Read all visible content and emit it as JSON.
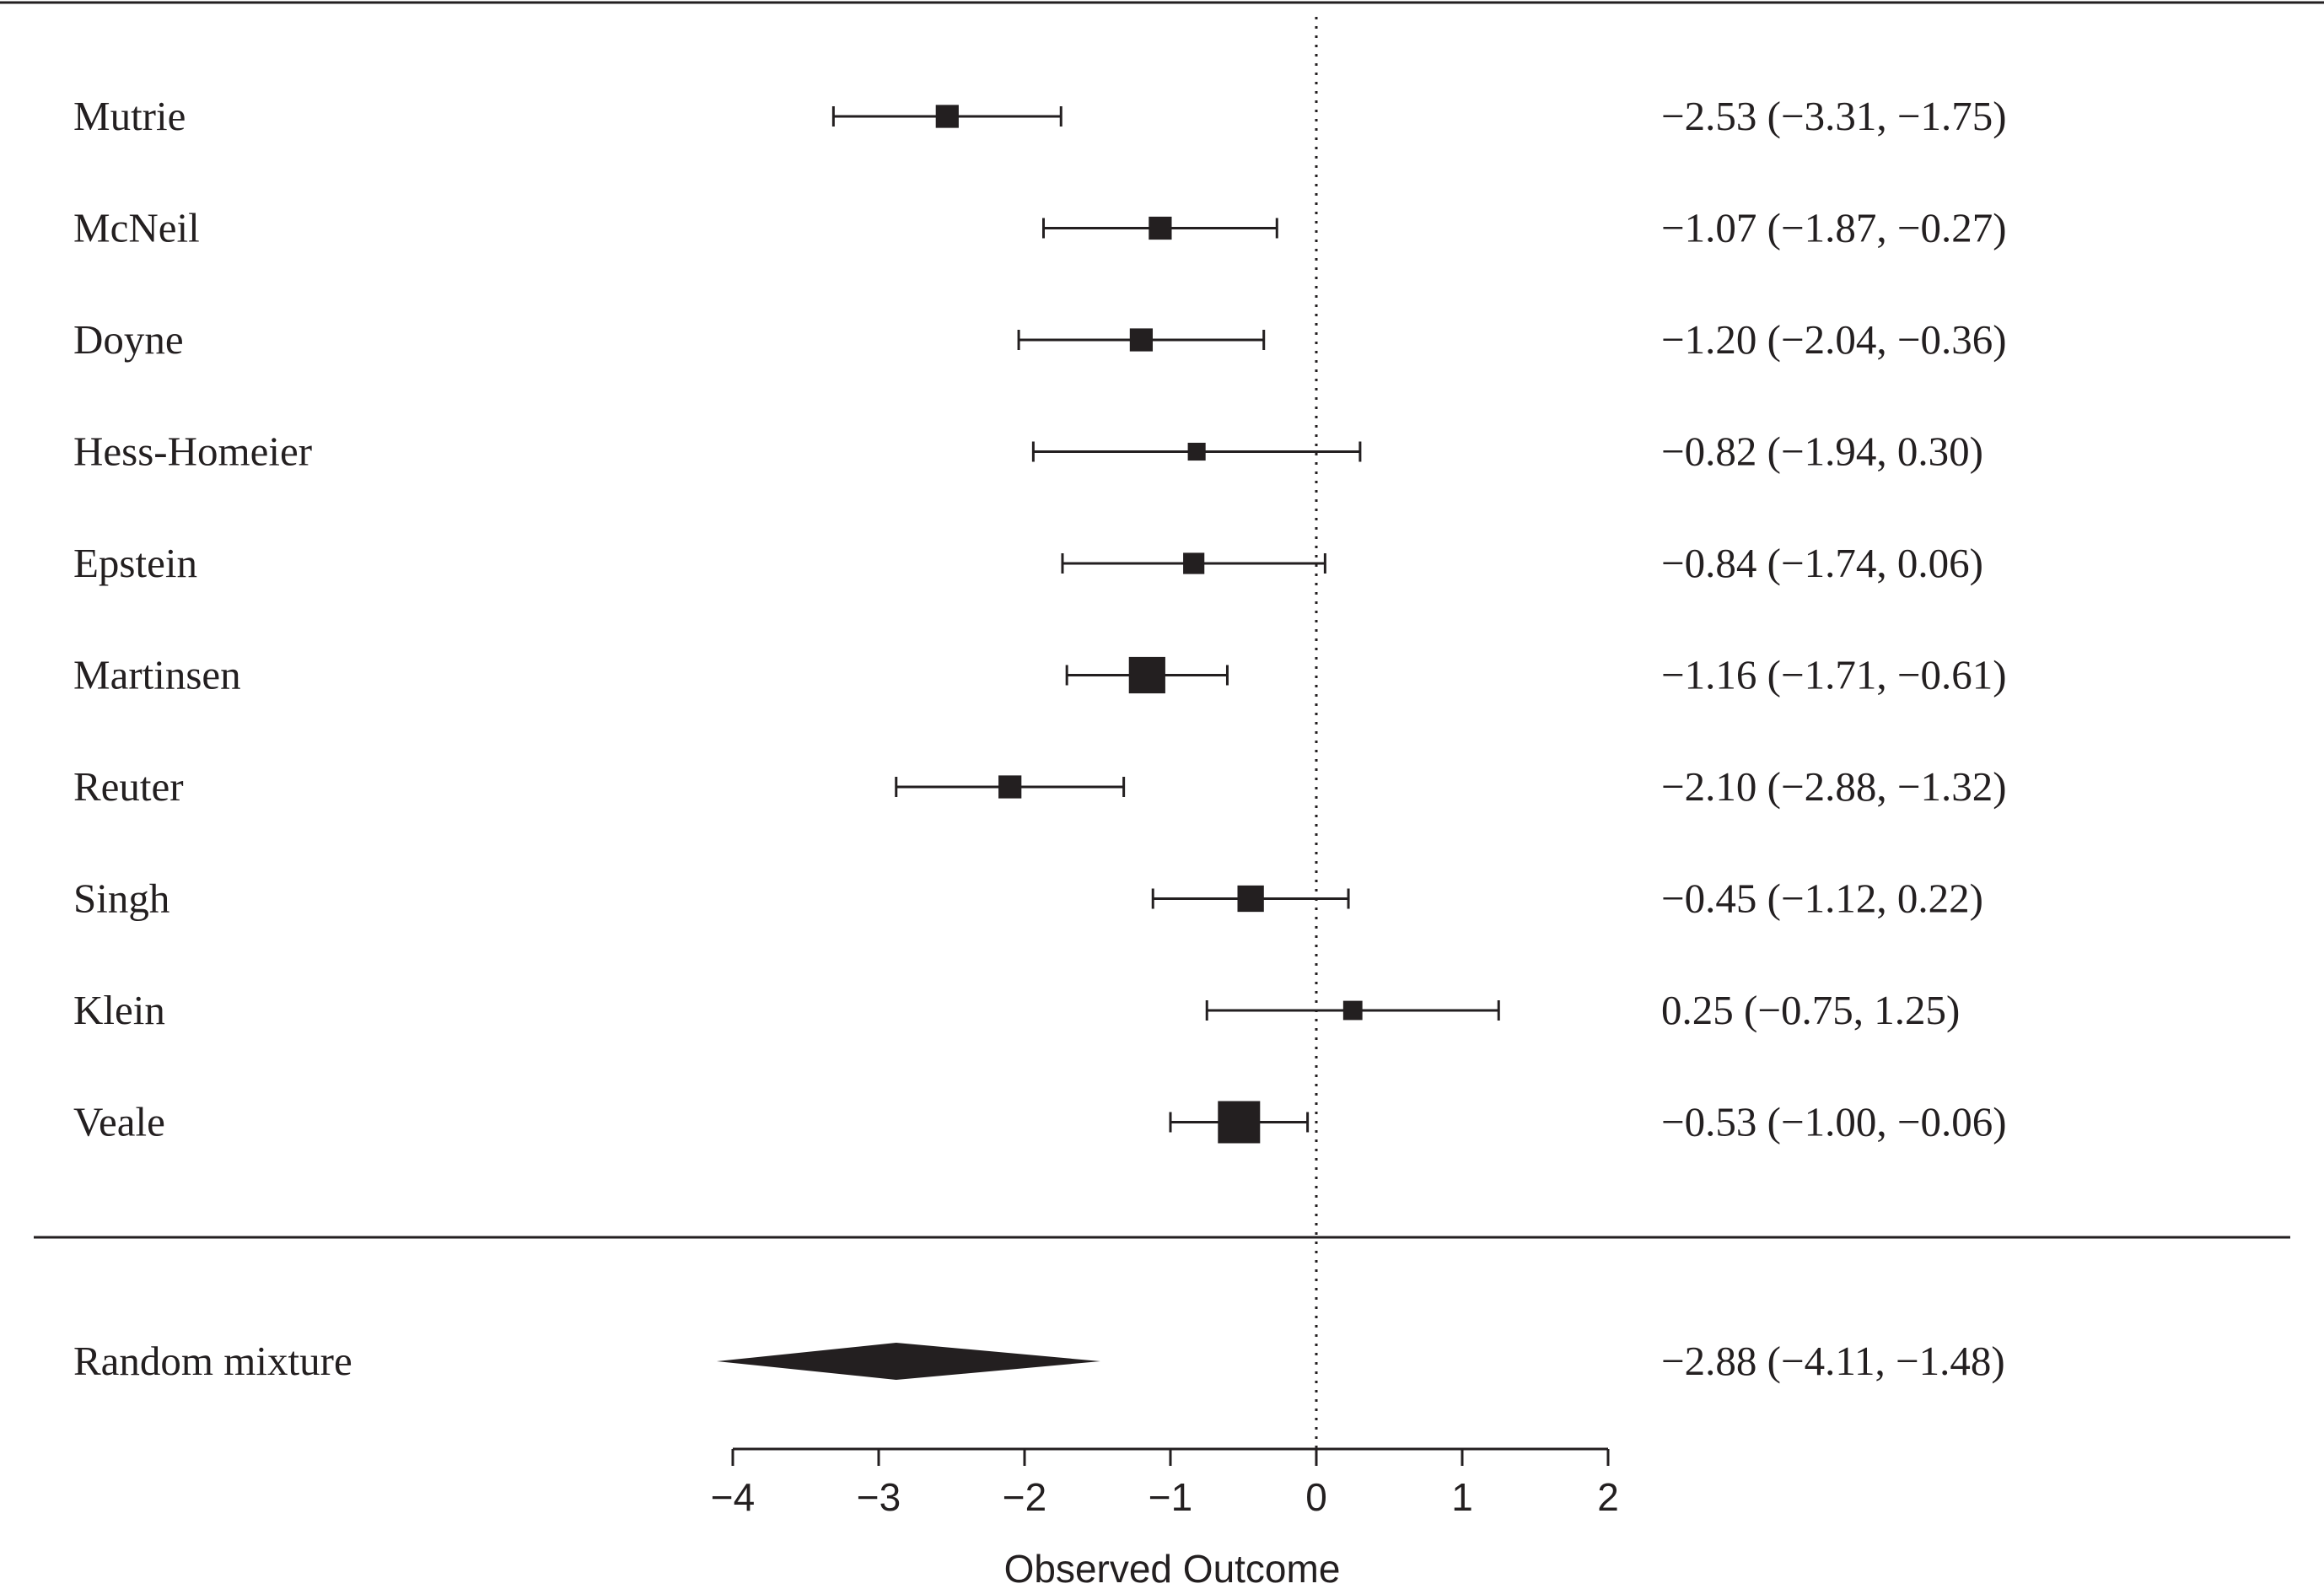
{
  "chart_data": {
    "type": "forest",
    "xlabel": "Observed Outcome",
    "xlim": [
      -4,
      2
    ],
    "ticks": [
      -4,
      -3,
      -2,
      -1,
      0,
      1,
      2
    ],
    "tick_labels": [
      "−4",
      "−3",
      "−2",
      "−1",
      "0",
      "1",
      "2"
    ],
    "reference_line": 0,
    "studies": [
      {
        "name": "Mutrie",
        "estimate": -2.53,
        "lower": -3.31,
        "upper": -1.75,
        "label": "−2.53 (−3.31, −1.75)",
        "weight": 0.33
      },
      {
        "name": "McNeil",
        "estimate": -1.07,
        "lower": -1.87,
        "upper": -0.27,
        "label": "−1.07 (−1.87, −0.27)",
        "weight": 0.33
      },
      {
        "name": "Doyne",
        "estimate": -1.2,
        "lower": -2.04,
        "upper": -0.36,
        "label": "−1.20 (−2.04, −0.36)",
        "weight": 0.33
      },
      {
        "name": "Hess-Homeier",
        "estimate": -0.82,
        "lower": -1.94,
        "upper": 0.3,
        "label": "−0.82 (−1.94,  0.30)",
        "weight": 0.15
      },
      {
        "name": "Epstein",
        "estimate": -0.84,
        "lower": -1.74,
        "upper": 0.06,
        "label": "−0.84 (−1.74,  0.06)",
        "weight": 0.27
      },
      {
        "name": "Martinsen",
        "estimate": -1.16,
        "lower": -1.71,
        "upper": -0.61,
        "label": "−1.16 (−1.71, −0.61)",
        "weight": 0.8
      },
      {
        "name": "Reuter",
        "estimate": -2.1,
        "lower": -2.88,
        "upper": -1.32,
        "label": "−2.10 (−2.88, −1.32)",
        "weight": 0.33
      },
      {
        "name": "Singh",
        "estimate": -0.45,
        "lower": -1.12,
        "upper": 0.22,
        "label": "−0.45 (−1.12,  0.22)",
        "weight": 0.45
      },
      {
        "name": " Klein",
        "estimate": 0.25,
        "lower": -0.75,
        "upper": 1.25,
        "label": " 0.25 (−0.75,  1.25)",
        "weight": 0.2
      },
      {
        "name": "Veale",
        "estimate": -0.53,
        "lower": -1.0,
        "upper": -0.06,
        "label": "−0.53 (−1.00, −0.06)",
        "weight": 1.0
      }
    ],
    "summary": {
      "name": "Random mixture",
      "estimate": -2.88,
      "lower": -4.11,
      "upper": -1.48,
      "label": "−2.88 (−4.11, −1.48)"
    },
    "colors": {
      "ink": "#231f20",
      "background": "#ffffff"
    }
  }
}
